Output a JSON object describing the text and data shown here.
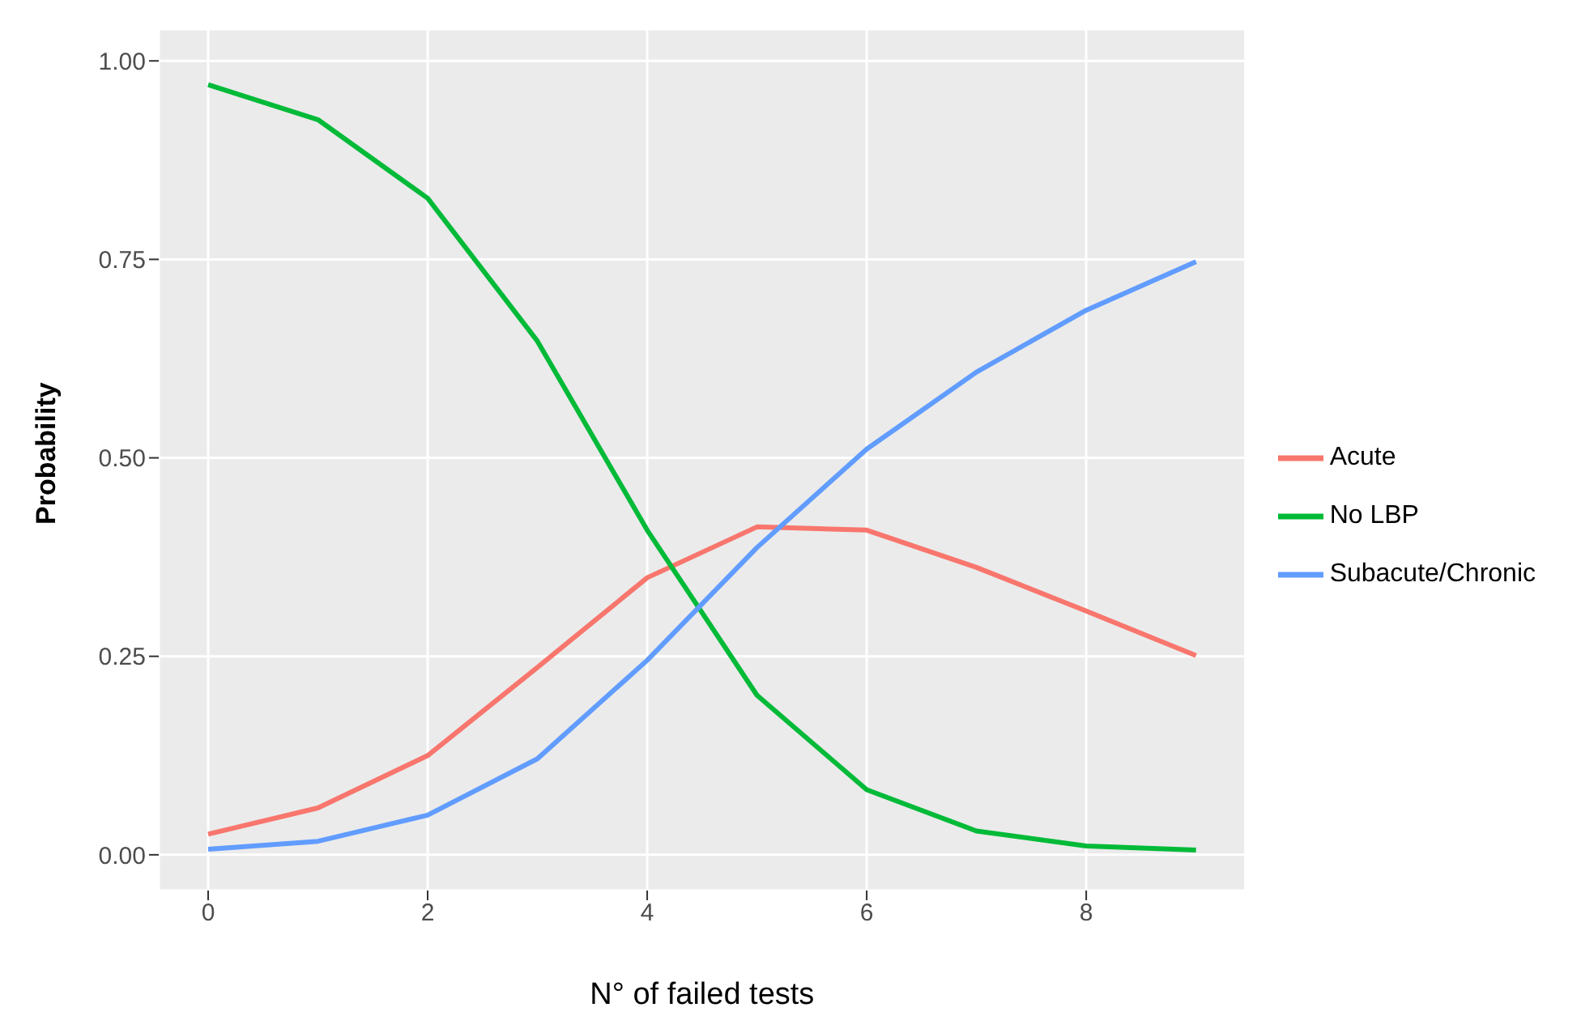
{
  "chart_data": {
    "type": "line",
    "xlabel": "N° of failed tests",
    "ylabel": "Probability",
    "x": [
      0,
      1,
      2,
      3,
      4,
      5,
      6,
      7,
      8,
      9
    ],
    "series": [
      {
        "name": "Acute",
        "color": "#f8766d",
        "values": [
          0.026,
          0.059,
          0.125,
          0.236,
          0.349,
          0.413,
          0.409,
          0.362,
          0.307,
          0.251
        ]
      },
      {
        "name": "No LBP",
        "color": "#00ba38",
        "values": [
          0.97,
          0.926,
          0.827,
          0.647,
          0.409,
          0.201,
          0.082,
          0.03,
          0.011,
          0.006
        ]
      },
      {
        "name": "Subacute/Chronic",
        "color": "#619cff",
        "values": [
          0.007,
          0.017,
          0.05,
          0.121,
          0.245,
          0.387,
          0.511,
          0.608,
          0.686,
          0.747
        ]
      }
    ],
    "xlim": [
      -0.45,
      9.45
    ],
    "xticks": [
      0,
      2,
      4,
      6,
      8
    ],
    "ylim": [
      -0.045,
      1.04
    ],
    "yticks": [
      {
        "value": 0,
        "label": "0.00"
      },
      {
        "value": 0.25,
        "label": "0.25"
      },
      {
        "value": 0.5,
        "label": "0.50"
      },
      {
        "value": 0.75,
        "label": "0.75"
      },
      {
        "value": 1,
        "label": "1.00"
      }
    ],
    "grid": true,
    "legend": "right",
    "marker": "none",
    "line_style": "solid"
  }
}
